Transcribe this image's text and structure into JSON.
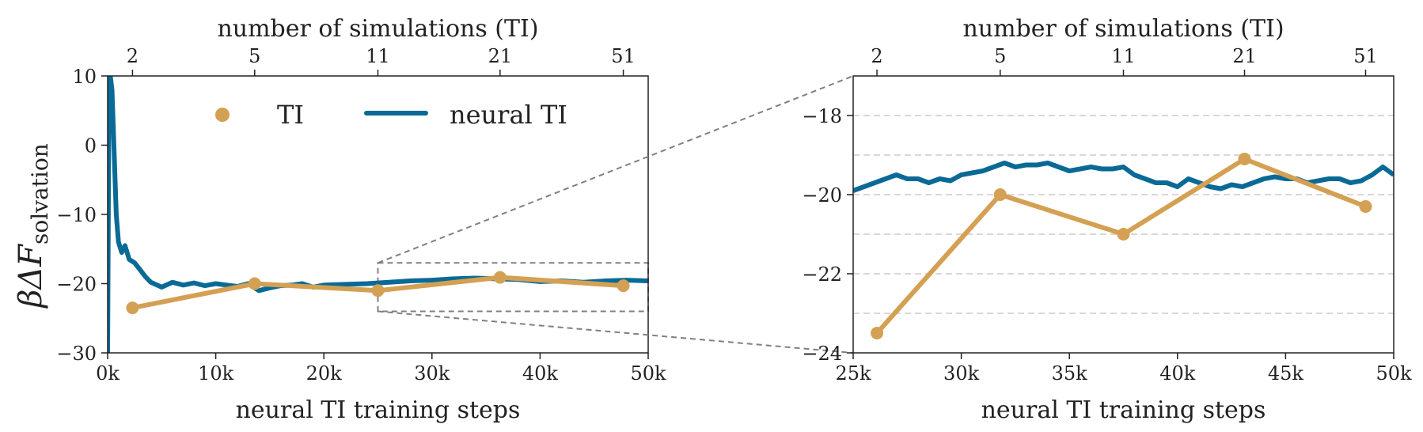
{
  "colors": {
    "ti": "#D4A053",
    "neural": "#0A6A96",
    "guide": "#808080",
    "grid": "#CCCCCC"
  },
  "legend": {
    "ti_label": "TI",
    "neural_label": "neural TI"
  },
  "y_axis_label": {
    "prefix": "βΔF",
    "subscript": "solvation"
  },
  "chart_data": [
    {
      "type": "line",
      "panel": "full",
      "xlabel": "neural TI training steps",
      "top_xlabel": "number of simulations (TI)",
      "ylabel": "βΔF solvation",
      "xlim": [
        0,
        50000
      ],
      "ylim": [
        -30,
        10
      ],
      "x_ticks": [
        0,
        10000,
        20000,
        30000,
        40000,
        50000
      ],
      "x_tick_labels": [
        "0k",
        "10k",
        "20k",
        "30k",
        "40k",
        "50k"
      ],
      "y_ticks": [
        10,
        0,
        -10,
        -20,
        -30
      ],
      "y_tick_labels": [
        "10",
        "0",
        "−10",
        "−20",
        "−30"
      ],
      "top_ticks": [
        2300,
        13600,
        25000,
        36300,
        47700
      ],
      "top_tick_labels": [
        "2",
        "5",
        "11",
        "21",
        "51"
      ],
      "legend_position": "top",
      "zoom_box": {
        "x": [
          25000,
          50000
        ],
        "y": [
          -24,
          -17
        ]
      },
      "series": [
        {
          "name": "TI",
          "x": [
            2300,
            13600,
            25000,
            36300,
            47700
          ],
          "y": [
            -23.5,
            -20.0,
            -21.0,
            -19.1,
            -20.3
          ]
        },
        {
          "name": "neural TI",
          "x": [
            0,
            100,
            250,
            400,
            600,
            800,
            1000,
            1300,
            1600,
            2000,
            2500,
            3000,
            3500,
            4000,
            5000,
            6000,
            7000,
            8000,
            9000,
            10000,
            11000,
            12000,
            13000,
            14000,
            15000,
            16000,
            17000,
            18000,
            19000,
            20000,
            22000,
            24000,
            26000,
            28000,
            30000,
            32000,
            34000,
            36000,
            38000,
            40000,
            42000,
            44000,
            46000,
            48000,
            50000
          ],
          "y": [
            -30,
            2,
            10,
            8,
            -1,
            -10,
            -14,
            -15.5,
            -14.5,
            -16.5,
            -17,
            -18,
            -19,
            -19.8,
            -20.5,
            -19.8,
            -20.2,
            -19.9,
            -20.3,
            -20.0,
            -20.2,
            -20.4,
            -20.0,
            -21.0,
            -20.6,
            -20.3,
            -20.2,
            -20.0,
            -20.5,
            -20.2,
            -20.1,
            -20.0,
            -19.8,
            -19.6,
            -19.5,
            -19.3,
            -19.2,
            -19.3,
            -19.4,
            -19.7,
            -19.6,
            -19.8,
            -19.6,
            -19.5,
            -19.6
          ]
        }
      ]
    },
    {
      "type": "line",
      "panel": "zoom",
      "xlabel": "neural TI training steps",
      "top_xlabel": "number of simulations (TI)",
      "xlim": [
        25000,
        50000
      ],
      "ylim": [
        -24,
        -17
      ],
      "x_ticks": [
        25000,
        30000,
        35000,
        40000,
        45000,
        50000
      ],
      "x_tick_labels": [
        "25k",
        "30k",
        "35k",
        "40k",
        "45k",
        "50k"
      ],
      "y_ticks": [
        -18,
        -20,
        -22,
        -24
      ],
      "y_tick_labels": [
        "−18",
        "−20",
        "−22",
        "−24"
      ],
      "y_grid": [
        -18,
        -19,
        -20,
        -21,
        -22,
        -23
      ],
      "top_ticks": [
        26100,
        31800,
        37500,
        43100,
        48700
      ],
      "top_tick_labels": [
        "2",
        "5",
        "11",
        "21",
        "51"
      ],
      "series": [
        {
          "name": "TI",
          "x": [
            26100,
            31800,
            37500,
            43100,
            48700
          ],
          "y": [
            -23.5,
            -20.0,
            -21.0,
            -19.1,
            -20.3
          ]
        },
        {
          "name": "neural TI",
          "x": [
            25000,
            25500,
            26000,
            26500,
            27000,
            27500,
            28000,
            28500,
            29000,
            29500,
            30000,
            30500,
            31000,
            31500,
            32000,
            32500,
            33000,
            33500,
            34000,
            34500,
            35000,
            35500,
            36000,
            36500,
            37000,
            37500,
            38000,
            38500,
            39000,
            39500,
            40000,
            40500,
            41000,
            41500,
            42000,
            42500,
            43000,
            43500,
            44000,
            44500,
            45000,
            45500,
            46000,
            46500,
            47000,
            47500,
            48000,
            48500,
            49000,
            49500,
            50000
          ],
          "y": [
            -19.9,
            -19.8,
            -19.7,
            -19.6,
            -19.5,
            -19.6,
            -19.6,
            -19.7,
            -19.6,
            -19.65,
            -19.5,
            -19.45,
            -19.4,
            -19.3,
            -19.2,
            -19.3,
            -19.25,
            -19.25,
            -19.2,
            -19.3,
            -19.4,
            -19.35,
            -19.3,
            -19.35,
            -19.35,
            -19.3,
            -19.5,
            -19.6,
            -19.7,
            -19.7,
            -19.8,
            -19.6,
            -19.7,
            -19.8,
            -19.85,
            -19.75,
            -19.8,
            -19.7,
            -19.6,
            -19.55,
            -19.6,
            -19.6,
            -19.7,
            -19.65,
            -19.6,
            -19.6,
            -19.7,
            -19.65,
            -19.5,
            -19.3,
            -19.5
          ]
        }
      ]
    }
  ]
}
